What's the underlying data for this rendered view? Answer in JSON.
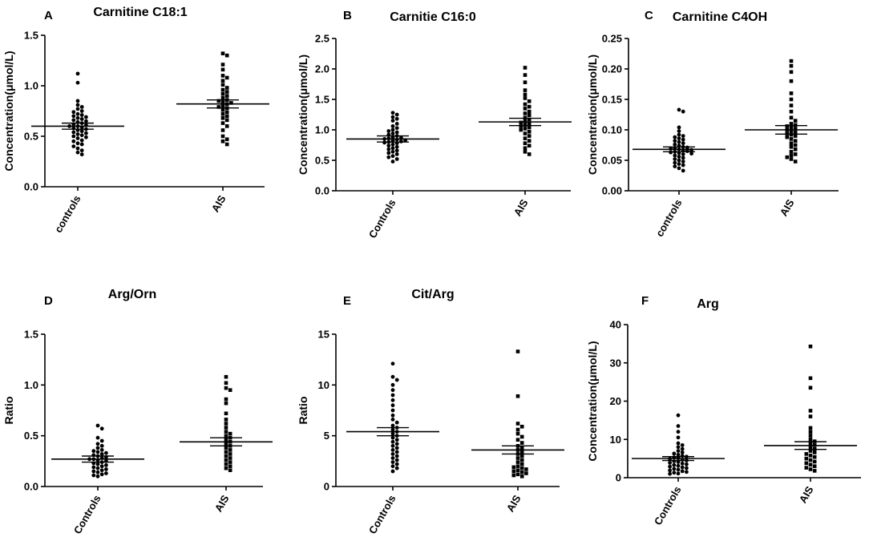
{
  "figure": {
    "panels_count": 6
  },
  "chart_data": [
    {
      "type": "scatter",
      "panel_letter": "A",
      "title": "Carnitine C18:1",
      "ylabel": "Concentration(μmol/L)",
      "xlabel": "",
      "ylim": [
        0,
        1.5
      ],
      "yticks": [
        0,
        0.5,
        1.0,
        1.5
      ],
      "ytick_labels": [
        "0.0",
        "0.5",
        "1.0",
        "1.5"
      ],
      "categories": [
        "controls",
        "AIS"
      ],
      "series": [
        {
          "name": "controls",
          "marker": "circle",
          "mean": 0.6,
          "sem_low": 0.57,
          "sem_high": 0.63,
          "values": [
            1.12,
            1.03,
            0.85,
            0.81,
            0.79,
            0.77,
            0.75,
            0.74,
            0.72,
            0.71,
            0.7,
            0.69,
            0.68,
            0.67,
            0.66,
            0.65,
            0.64,
            0.63,
            0.62,
            0.61,
            0.6,
            0.6,
            0.59,
            0.58,
            0.57,
            0.56,
            0.55,
            0.54,
            0.53,
            0.52,
            0.51,
            0.5,
            0.49,
            0.48,
            0.46,
            0.45,
            0.43,
            0.42,
            0.4,
            0.38,
            0.36,
            0.34,
            0.32
          ]
        },
        {
          "name": "AIS",
          "marker": "square",
          "mean": 0.82,
          "sem_low": 0.78,
          "sem_high": 0.86,
          "values": [
            1.32,
            1.3,
            1.21,
            1.16,
            1.1,
            1.08,
            1.05,
            1.01,
            0.98,
            0.96,
            0.94,
            0.92,
            0.9,
            0.88,
            0.86,
            0.85,
            0.84,
            0.83,
            0.82,
            0.8,
            0.79,
            0.78,
            0.76,
            0.74,
            0.72,
            0.7,
            0.68,
            0.66,
            0.63,
            0.6,
            0.56,
            0.5,
            0.47,
            0.45,
            0.42
          ]
        }
      ]
    },
    {
      "type": "scatter",
      "panel_letter": "B",
      "title": "Carnitie C16:0",
      "ylabel": "Concentration(μmol/L)",
      "xlabel": "",
      "ylim": [
        0,
        2.5
      ],
      "yticks": [
        0,
        0.5,
        1.0,
        1.5,
        2.0,
        2.5
      ],
      "ytick_labels": [
        "0.0",
        "0.5",
        "1.0",
        "1.5",
        "2.0",
        "2.5"
      ],
      "categories": [
        "Controls",
        "AIS"
      ],
      "series": [
        {
          "name": "Controls",
          "marker": "circle",
          "mean": 0.85,
          "sem_low": 0.8,
          "sem_high": 0.9,
          "values": [
            1.28,
            1.25,
            1.21,
            1.18,
            1.15,
            1.1,
            1.06,
            1.03,
            1.0,
            0.98,
            0.96,
            0.94,
            0.92,
            0.9,
            0.88,
            0.87,
            0.86,
            0.85,
            0.84,
            0.83,
            0.82,
            0.81,
            0.8,
            0.79,
            0.78,
            0.76,
            0.74,
            0.72,
            0.7,
            0.68,
            0.66,
            0.64,
            0.62,
            0.6,
            0.57,
            0.55,
            0.52,
            0.48
          ]
        },
        {
          "name": "AIS",
          "marker": "square",
          "mean": 1.13,
          "sem_low": 1.07,
          "sem_high": 1.19,
          "values": [
            2.02,
            1.9,
            1.78,
            1.65,
            1.58,
            1.52,
            1.47,
            1.42,
            1.38,
            1.35,
            1.3,
            1.27,
            1.24,
            1.2,
            1.17,
            1.14,
            1.12,
            1.1,
            1.08,
            1.06,
            1.04,
            1.02,
            1.0,
            0.97,
            0.94,
            0.9,
            0.86,
            0.82,
            0.78,
            0.74,
            0.7,
            0.64,
            0.6
          ]
        }
      ]
    },
    {
      "type": "scatter",
      "panel_letter": "C",
      "title": "Carnitine C4OH",
      "ylabel": "Concentration(μmol/L)",
      "xlabel": "",
      "ylim": [
        0,
        0.25
      ],
      "yticks": [
        0,
        0.05,
        0.1,
        0.15,
        0.2,
        0.25
      ],
      "ytick_labels": [
        "0.00",
        "0.05",
        "0.10",
        "0.15",
        "0.20",
        "0.25"
      ],
      "categories": [
        "controls",
        "AIS"
      ],
      "series": [
        {
          "name": "controls",
          "marker": "circle",
          "mean": 0.068,
          "sem_low": 0.064,
          "sem_high": 0.072,
          "values": [
            0.133,
            0.13,
            0.104,
            0.098,
            0.092,
            0.09,
            0.088,
            0.086,
            0.084,
            0.082,
            0.08,
            0.078,
            0.076,
            0.074,
            0.072,
            0.071,
            0.07,
            0.069,
            0.068,
            0.067,
            0.066,
            0.065,
            0.064,
            0.063,
            0.062,
            0.061,
            0.06,
            0.058,
            0.056,
            0.054,
            0.052,
            0.05,
            0.048,
            0.046,
            0.044,
            0.042,
            0.04,
            0.037,
            0.033
          ]
        },
        {
          "name": "AIS",
          "marker": "square",
          "mean": 0.1,
          "sem_low": 0.093,
          "sem_high": 0.107,
          "values": [
            0.213,
            0.205,
            0.195,
            0.18,
            0.16,
            0.15,
            0.14,
            0.13,
            0.12,
            0.115,
            0.11,
            0.108,
            0.106,
            0.104,
            0.102,
            0.1,
            0.098,
            0.096,
            0.094,
            0.092,
            0.09,
            0.088,
            0.085,
            0.082,
            0.078,
            0.075,
            0.072,
            0.068,
            0.064,
            0.06,
            0.058,
            0.055,
            0.052,
            0.048
          ]
        }
      ]
    },
    {
      "type": "scatter",
      "panel_letter": "D",
      "title": "Arg/Orn",
      "ylabel": "Ratio",
      "xlabel": "",
      "ylim": [
        0,
        1.5
      ],
      "yticks": [
        0,
        0.5,
        1.0,
        1.5
      ],
      "ytick_labels": [
        "0.0",
        "0.5",
        "1.0",
        "1.5"
      ],
      "categories": [
        "Controls",
        "AIS"
      ],
      "series": [
        {
          "name": "Controls",
          "marker": "circle",
          "mean": 0.27,
          "sem_low": 0.24,
          "sem_high": 0.3,
          "values": [
            0.6,
            0.57,
            0.48,
            0.45,
            0.42,
            0.4,
            0.38,
            0.36,
            0.35,
            0.34,
            0.33,
            0.32,
            0.31,
            0.3,
            0.29,
            0.28,
            0.27,
            0.27,
            0.26,
            0.25,
            0.24,
            0.23,
            0.22,
            0.21,
            0.2,
            0.19,
            0.18,
            0.17,
            0.16,
            0.15,
            0.14,
            0.13,
            0.12,
            0.11,
            0.1
          ]
        },
        {
          "name": "AIS",
          "marker": "square",
          "mean": 0.44,
          "sem_low": 0.4,
          "sem_high": 0.48,
          "values": [
            1.08,
            1.02,
            0.97,
            0.95,
            0.86,
            0.82,
            0.72,
            0.66,
            0.62,
            0.58,
            0.54,
            0.52,
            0.5,
            0.48,
            0.46,
            0.44,
            0.42,
            0.4,
            0.38,
            0.36,
            0.34,
            0.32,
            0.3,
            0.28,
            0.26,
            0.24,
            0.22,
            0.2,
            0.18,
            0.16
          ]
        }
      ]
    },
    {
      "type": "scatter",
      "panel_letter": "E",
      "title": "Cit/Arg",
      "ylabel": "Ratio",
      "xlabel": "",
      "ylim": [
        0,
        15
      ],
      "yticks": [
        0,
        5,
        10,
        15
      ],
      "ytick_labels": [
        "0",
        "5",
        "10",
        "15"
      ],
      "categories": [
        "Controls",
        "AIS"
      ],
      "series": [
        {
          "name": "Controls",
          "marker": "circle",
          "mean": 5.4,
          "sem_low": 5.0,
          "sem_high": 5.8,
          "values": [
            12.1,
            10.8,
            10.5,
            10.0,
            9.5,
            9.0,
            8.5,
            8.0,
            7.5,
            7.0,
            6.6,
            6.3,
            6.0,
            5.8,
            5.6,
            5.4,
            5.2,
            5.0,
            4.8,
            4.6,
            4.4,
            4.2,
            4.0,
            3.8,
            3.6,
            3.4,
            3.2,
            3.0,
            2.8,
            2.6,
            2.4,
            2.2,
            2.0,
            1.8,
            1.5
          ]
        },
        {
          "name": "AIS",
          "marker": "square",
          "mean": 3.6,
          "sem_low": 3.2,
          "sem_high": 4.0,
          "values": [
            13.3,
            8.9,
            6.2,
            5.9,
            5.6,
            5.2,
            4.9,
            4.6,
            4.3,
            4.0,
            3.8,
            3.6,
            3.4,
            3.2,
            3.0,
            2.8,
            2.6,
            2.4,
            2.2,
            2.0,
            1.9,
            1.8,
            1.7,
            1.6,
            1.5,
            1.4,
            1.3,
            1.2,
            1.1,
            1.0
          ]
        }
      ]
    },
    {
      "type": "scatter",
      "panel_letter": "F",
      "title": "Arg",
      "ylabel": "Concentration(μmol/L)",
      "xlabel": "",
      "ylim": [
        0,
        40
      ],
      "yticks": [
        0,
        10,
        20,
        30,
        40
      ],
      "ytick_labels": [
        "0",
        "10",
        "20",
        "30",
        "40"
      ],
      "categories": [
        "Controls",
        "AIS"
      ],
      "series": [
        {
          "name": "Controls",
          "marker": "circle",
          "mean": 5.0,
          "sem_low": 4.5,
          "sem_high": 5.5,
          "values": [
            16.3,
            13.5,
            12.0,
            10.5,
            9.0,
            8.5,
            8.0,
            7.5,
            7.0,
            6.6,
            6.3,
            6.0,
            5.7,
            5.5,
            5.3,
            5.1,
            4.9,
            4.7,
            4.5,
            4.3,
            4.1,
            3.9,
            3.7,
            3.5,
            3.3,
            3.1,
            2.9,
            2.7,
            2.5,
            2.3,
            2.1,
            1.9,
            1.7,
            1.5,
            1.3,
            1.1,
            1.0
          ]
        },
        {
          "name": "AIS",
          "marker": "square",
          "mean": 8.4,
          "sem_low": 7.4,
          "sem_high": 9.4,
          "values": [
            34.3,
            26.0,
            23.5,
            17.5,
            16.0,
            13.0,
            12.0,
            11.0,
            10.0,
            9.5,
            9.0,
            8.5,
            8.0,
            7.5,
            7.0,
            6.6,
            6.2,
            5.8,
            5.4,
            5.0,
            4.6,
            4.2,
            3.8,
            3.4,
            3.0,
            2.6,
            2.2,
            1.8
          ]
        }
      ]
    }
  ]
}
